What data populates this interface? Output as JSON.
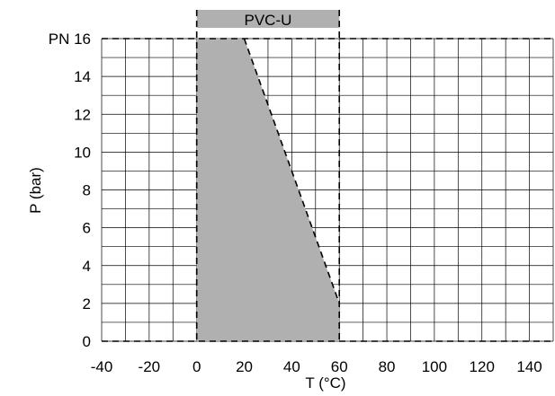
{
  "chart_data": {
    "type": "area",
    "title": "",
    "xlabel": "T (°C)",
    "ylabel": "P (bar)",
    "xlim": [
      -40,
      150
    ],
    "ylim": [
      0,
      16
    ],
    "x_ticks": [
      -40,
      -20,
      0,
      20,
      40,
      60,
      80,
      100,
      120,
      140
    ],
    "x_tick_labels": [
      "-40",
      "-20",
      "0",
      "20",
      "40",
      "60",
      "80",
      "100",
      "120",
      "140"
    ],
    "y_ticks": [
      0,
      2,
      4,
      6,
      8,
      10,
      12,
      14,
      16
    ],
    "y_tick_labels": [
      "0",
      "2",
      "4",
      "6",
      "8",
      "10",
      "12",
      "14",
      "PN 16"
    ],
    "grid": true,
    "series": [
      {
        "name": "PVC-U",
        "x": [
          0,
          20,
          60,
          60,
          0
        ],
        "y": [
          16,
          16,
          2,
          0,
          0
        ],
        "color": "#b0b0b0"
      }
    ],
    "range_band": {
      "label": "PVC-U",
      "x_start": 0,
      "x_end": 60,
      "color": "#b0b0b0"
    }
  }
}
